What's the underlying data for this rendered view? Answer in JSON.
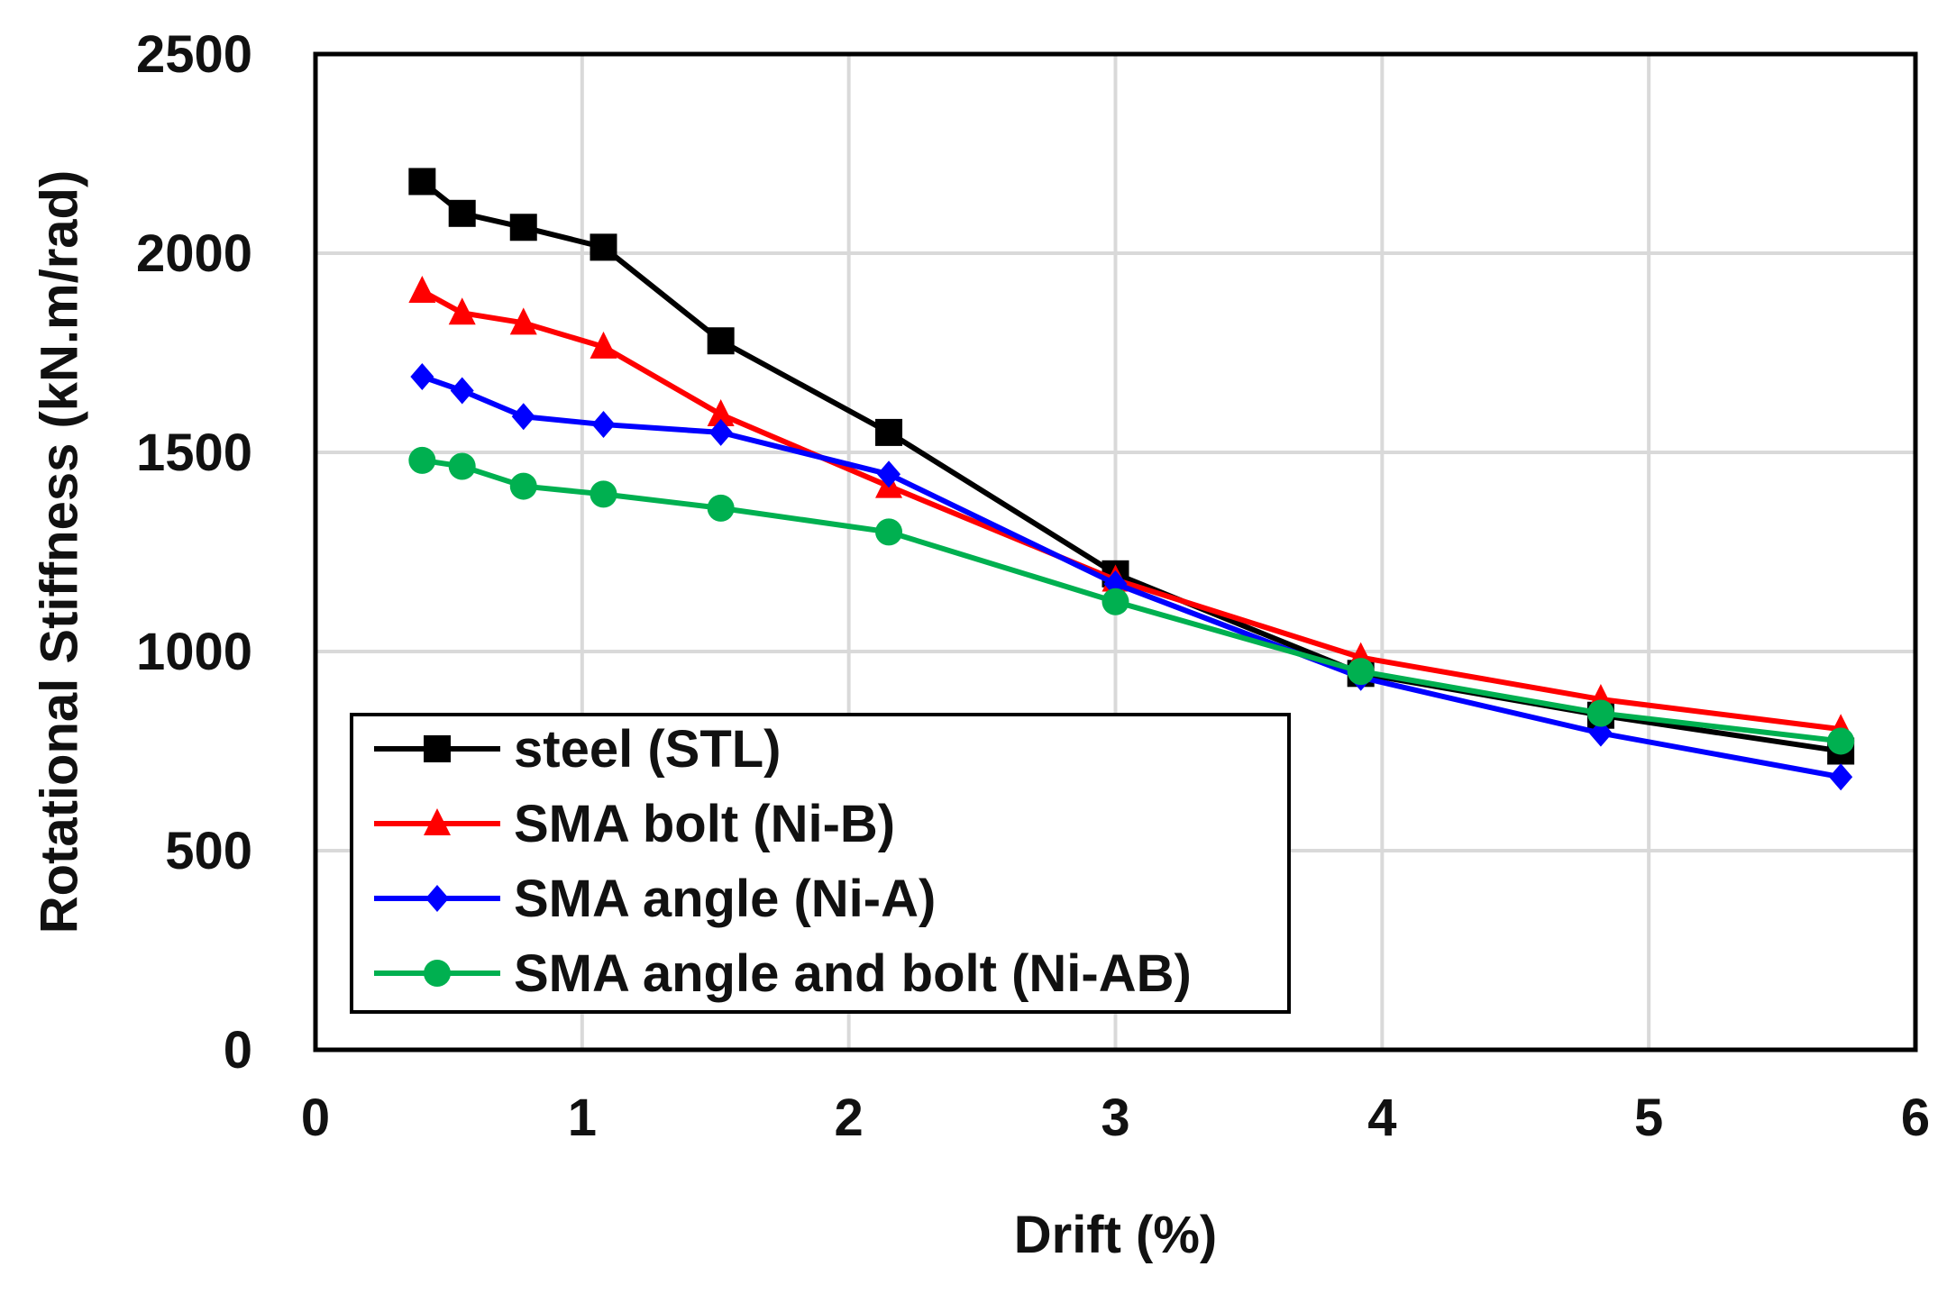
{
  "chart_data": {
    "type": "line",
    "title": "",
    "xlabel": "Drift (%)",
    "ylabel": "Rotational Stiffness (kN.m/rad)",
    "xlim": [
      0,
      6
    ],
    "ylim": [
      0,
      2500
    ],
    "xticks": [
      "0",
      "1",
      "2",
      "3",
      "4",
      "5",
      "6"
    ],
    "yticks": [
      "0",
      "500",
      "1000",
      "1500",
      "2000",
      "2500"
    ],
    "xtick_values": [
      0,
      1,
      2,
      3,
      4,
      5,
      6
    ],
    "ytick_values": [
      0,
      500,
      1000,
      1500,
      2000,
      2500
    ],
    "grid": true,
    "legend_position": "bottom-left",
    "series": [
      {
        "name": "steel (STL)",
        "color": "#000000",
        "marker": "square",
        "x": [
          0.4,
          0.55,
          0.78,
          1.08,
          1.52,
          2.15,
          3.0,
          3.92,
          4.82,
          5.72
        ],
        "y": [
          2180,
          2100,
          2065,
          2015,
          1780,
          1550,
          1195,
          945,
          840,
          750
        ]
      },
      {
        "name": "SMA bolt (Ni-B)",
        "color": "#ff0000",
        "marker": "triangle",
        "x": [
          0.4,
          0.55,
          0.78,
          1.08,
          1.52,
          2.15,
          3.0,
          3.92,
          4.82,
          5.72
        ],
        "y": [
          1905,
          1850,
          1825,
          1765,
          1595,
          1415,
          1180,
          985,
          880,
          805
        ]
      },
      {
        "name": "SMA angle (Ni-A)",
        "color": "#0000ff",
        "marker": "diamond",
        "x": [
          0.4,
          0.55,
          0.78,
          1.08,
          1.52,
          2.15,
          3.0,
          3.92,
          4.82,
          5.72
        ],
        "y": [
          1690,
          1655,
          1590,
          1570,
          1550,
          1445,
          1170,
          935,
          795,
          685
        ]
      },
      {
        "name": "SMA angle and bolt (Ni-AB)",
        "color": "#00b050",
        "marker": "circle",
        "x": [
          0.4,
          0.55,
          0.78,
          1.08,
          1.52,
          2.15,
          3.0,
          3.92,
          4.82,
          5.72
        ],
        "y": [
          1480,
          1465,
          1415,
          1395,
          1360,
          1300,
          1125,
          950,
          845,
          775
        ]
      }
    ]
  }
}
